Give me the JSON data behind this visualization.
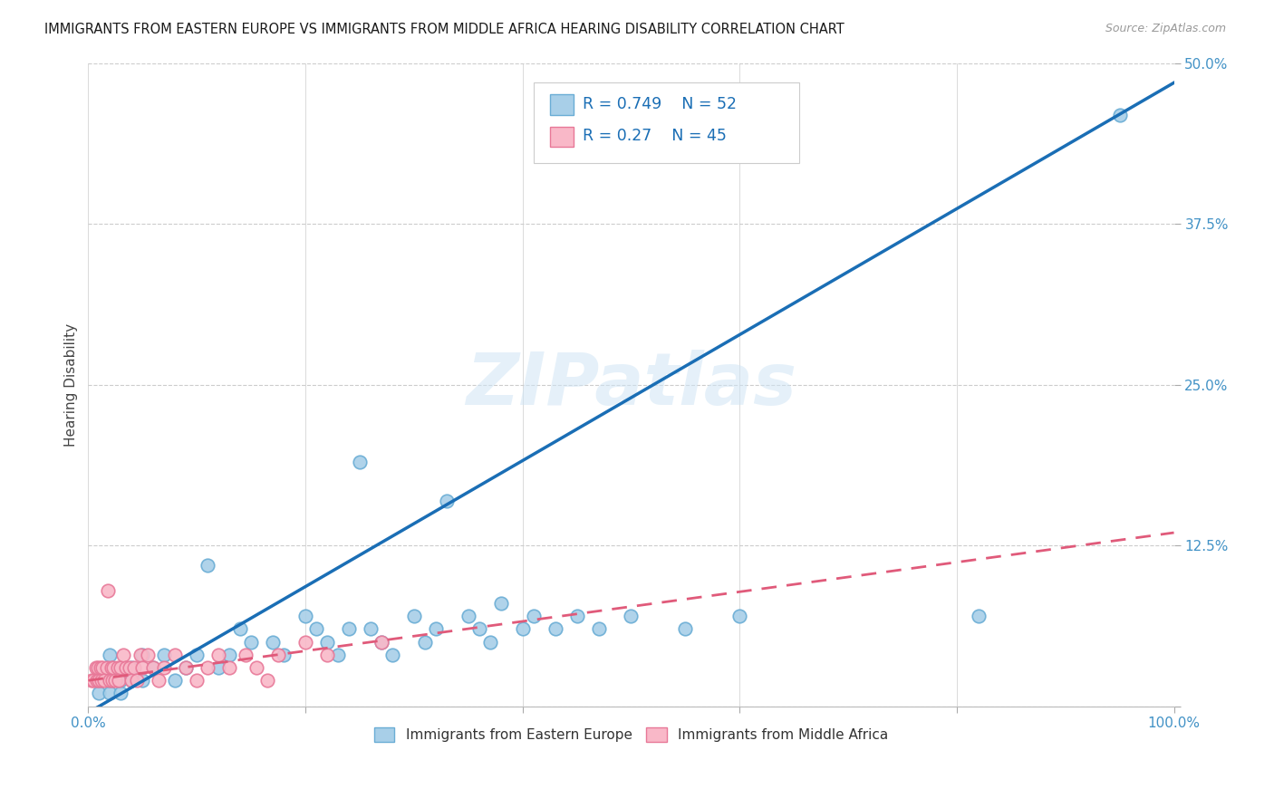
{
  "title": "IMMIGRANTS FROM EASTERN EUROPE VS IMMIGRANTS FROM MIDDLE AFRICA HEARING DISABILITY CORRELATION CHART",
  "source": "Source: ZipAtlas.com",
  "ylabel": "Hearing Disability",
  "xlim": [
    0.0,
    1.0
  ],
  "ylim": [
    0.0,
    0.5
  ],
  "yticks": [
    0.0,
    0.125,
    0.25,
    0.375,
    0.5
  ],
  "ytick_labels": [
    "",
    "12.5%",
    "25.0%",
    "37.5%",
    "50.0%"
  ],
  "xticks": [
    0.0,
    0.2,
    0.4,
    0.6,
    0.8,
    1.0
  ],
  "xtick_labels": [
    "0.0%",
    "",
    "",
    "",
    "",
    "100.0%"
  ],
  "series1_color": "#a8cfe8",
  "series1_edge_color": "#6aadd5",
  "series2_color": "#f9b8c8",
  "series2_edge_color": "#e87898",
  "regression1_color": "#1a6eb5",
  "regression2_color": "#e05a7a",
  "R1": 0.749,
  "N1": 52,
  "R2": 0.27,
  "N2": 45,
  "legend_label1": "Immigrants from Eastern Europe",
  "legend_label2": "Immigrants from Middle Africa",
  "watermark": "ZIPatlas",
  "background_color": "#ffffff",
  "blue_scatter_x": [
    0.01,
    0.01,
    0.02,
    0.02,
    0.02,
    0.02,
    0.03,
    0.03,
    0.03,
    0.04,
    0.04,
    0.05,
    0.05,
    0.06,
    0.07,
    0.08,
    0.09,
    0.1,
    0.11,
    0.12,
    0.13,
    0.14,
    0.15,
    0.17,
    0.18,
    0.2,
    0.21,
    0.22,
    0.23,
    0.24,
    0.25,
    0.26,
    0.27,
    0.28,
    0.3,
    0.31,
    0.32,
    0.33,
    0.35,
    0.36,
    0.37,
    0.38,
    0.4,
    0.41,
    0.43,
    0.45,
    0.47,
    0.5,
    0.55,
    0.6,
    0.82,
    0.95
  ],
  "blue_scatter_y": [
    0.01,
    0.02,
    0.01,
    0.02,
    0.03,
    0.04,
    0.01,
    0.02,
    0.03,
    0.02,
    0.03,
    0.02,
    0.04,
    0.03,
    0.04,
    0.02,
    0.03,
    0.04,
    0.11,
    0.03,
    0.04,
    0.06,
    0.05,
    0.05,
    0.04,
    0.07,
    0.06,
    0.05,
    0.04,
    0.06,
    0.19,
    0.06,
    0.05,
    0.04,
    0.07,
    0.05,
    0.06,
    0.16,
    0.07,
    0.06,
    0.05,
    0.08,
    0.06,
    0.07,
    0.06,
    0.07,
    0.06,
    0.07,
    0.06,
    0.07,
    0.07,
    0.46
  ],
  "pink_scatter_x": [
    0.003,
    0.005,
    0.007,
    0.008,
    0.009,
    0.01,
    0.011,
    0.012,
    0.013,
    0.015,
    0.017,
    0.018,
    0.02,
    0.021,
    0.022,
    0.023,
    0.025,
    0.027,
    0.028,
    0.03,
    0.032,
    0.035,
    0.038,
    0.04,
    0.042,
    0.045,
    0.048,
    0.05,
    0.055,
    0.06,
    0.065,
    0.07,
    0.08,
    0.09,
    0.1,
    0.11,
    0.12,
    0.13,
    0.145,
    0.155,
    0.165,
    0.175,
    0.2,
    0.22,
    0.27
  ],
  "pink_scatter_y": [
    0.02,
    0.02,
    0.03,
    0.02,
    0.03,
    0.02,
    0.03,
    0.02,
    0.03,
    0.02,
    0.03,
    0.09,
    0.02,
    0.03,
    0.02,
    0.03,
    0.02,
    0.03,
    0.02,
    0.03,
    0.04,
    0.03,
    0.03,
    0.02,
    0.03,
    0.02,
    0.04,
    0.03,
    0.04,
    0.03,
    0.02,
    0.03,
    0.04,
    0.03,
    0.02,
    0.03,
    0.04,
    0.03,
    0.04,
    0.03,
    0.02,
    0.04,
    0.05,
    0.04,
    0.05
  ]
}
